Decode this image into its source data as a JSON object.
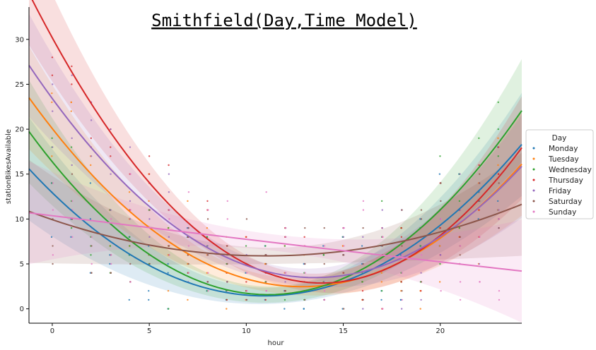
{
  "chart_data": {
    "type": "scatter",
    "title": "Smithfield(Day,Time Model)",
    "xlabel": "hour",
    "ylabel": "stationBikesAvailable",
    "xlim": [
      -1.2,
      24.2
    ],
    "ylim": [
      -1.6,
      33.6
    ],
    "xticks": [
      0,
      5,
      10,
      15,
      20
    ],
    "yticks": [
      0,
      5,
      10,
      15,
      20,
      25,
      30
    ],
    "grid": false,
    "legend": {
      "title": "Day",
      "placement": "right"
    },
    "fit": "quadratic regression with confidence band",
    "series": [
      {
        "name": "Monday",
        "color": "#1f77b4",
        "fit": [
          [
            0,
            12.8
          ],
          [
            5,
            5.0
          ],
          [
            10,
            1.6
          ],
          [
            15,
            3.0
          ],
          [
            20,
            9.0
          ],
          [
            24,
            18.0
          ]
        ]
      },
      {
        "name": "Tuesday",
        "color": "#ff7f0e",
        "fit": [
          [
            0,
            20.0
          ],
          [
            5,
            9.2
          ],
          [
            10,
            3.3
          ],
          [
            15,
            2.8
          ],
          [
            20,
            8.0
          ],
          [
            24,
            15.6
          ]
        ]
      },
      {
        "name": "Wednesday",
        "color": "#2ca02c",
        "fit": [
          [
            0,
            16.0
          ],
          [
            5,
            6.8
          ],
          [
            10,
            1.6
          ],
          [
            15,
            3.0
          ],
          [
            20,
            11.0
          ],
          [
            24,
            21.6
          ]
        ]
      },
      {
        "name": "Thursday",
        "color": "#d62728",
        "fit": [
          [
            0,
            30.0
          ],
          [
            5,
            14.5
          ],
          [
            10,
            4.8
          ],
          [
            15,
            2.8
          ],
          [
            20,
            8.4
          ],
          [
            24,
            17.3
          ]
        ]
      },
      {
        "name": "Friday",
        "color": "#9467bd",
        "fit": [
          [
            0,
            23.2
          ],
          [
            5,
            11.8
          ],
          [
            10,
            4.8
          ],
          [
            15,
            3.6
          ],
          [
            20,
            7.8
          ],
          [
            24,
            15.6
          ]
        ]
      },
      {
        "name": "Saturday",
        "color": "#8c564b",
        "fit": [
          [
            0,
            9.9
          ],
          [
            5,
            7.1
          ],
          [
            10,
            6.0
          ],
          [
            15,
            6.5
          ],
          [
            20,
            8.3
          ],
          [
            24,
            11.6
          ]
        ]
      },
      {
        "name": "Sunday",
        "color": "#e377c2",
        "fit": [
          [
            0,
            10.4
          ],
          [
            5,
            9.0
          ],
          [
            10,
            7.7
          ],
          [
            15,
            6.5
          ],
          [
            20,
            5.3
          ],
          [
            24,
            4.2
          ]
        ]
      }
    ]
  }
}
